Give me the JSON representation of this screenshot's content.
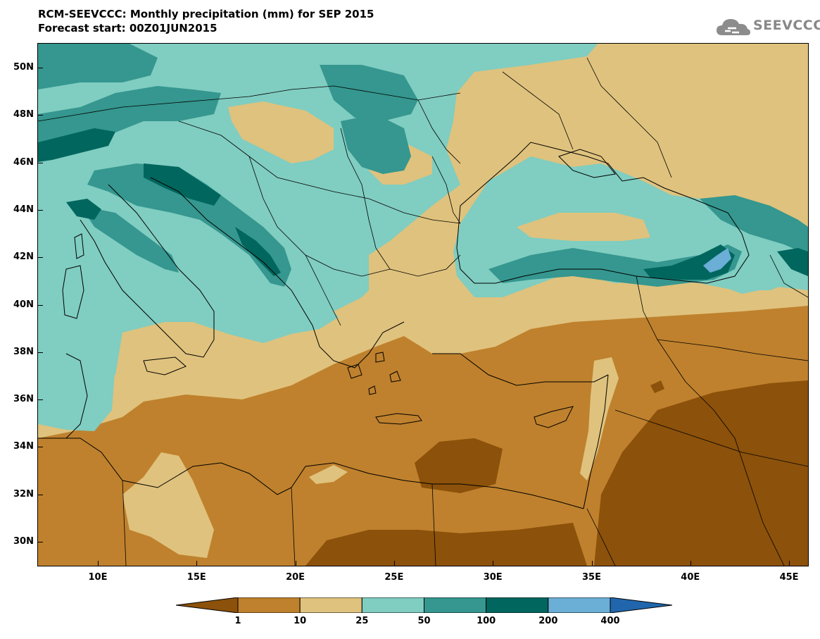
{
  "header": {
    "title_line1": "RCM-SEEVCCC: Monthly precipitation (mm) for SEP 2015",
    "title_line2": "Forecast start: 00Z01JUN2015"
  },
  "logo": {
    "text": "SEEVCCC",
    "icon": "cloud-icon",
    "color": "#8c8c8c"
  },
  "map": {
    "lat_labels": [
      "50N",
      "48N",
      "46N",
      "44N",
      "42N",
      "40N",
      "38N",
      "36N",
      "34N",
      "32N",
      "30N"
    ],
    "lon_labels": [
      "10E",
      "15E",
      "20E",
      "25E",
      "30E",
      "35E",
      "40E",
      "45E"
    ],
    "colors": {
      "lt1": "#8c510a",
      "c1_10": "#bf812d",
      "c10_25": "#dfc27d",
      "c25_50": "#80cdc1",
      "c50_100": "#35978f",
      "c100_200": "#01665e",
      "c200_400": "#6baed6",
      "gt400": "#2166ac",
      "border": "#000000"
    }
  },
  "colorbar": {
    "labels": [
      "1",
      "10",
      "25",
      "50",
      "100",
      "200",
      "400"
    ],
    "colors": [
      "#8c510a",
      "#bf812d",
      "#dfc27d",
      "#80cdc1",
      "#35978f",
      "#01665e",
      "#6baed6",
      "#2166ac"
    ]
  }
}
